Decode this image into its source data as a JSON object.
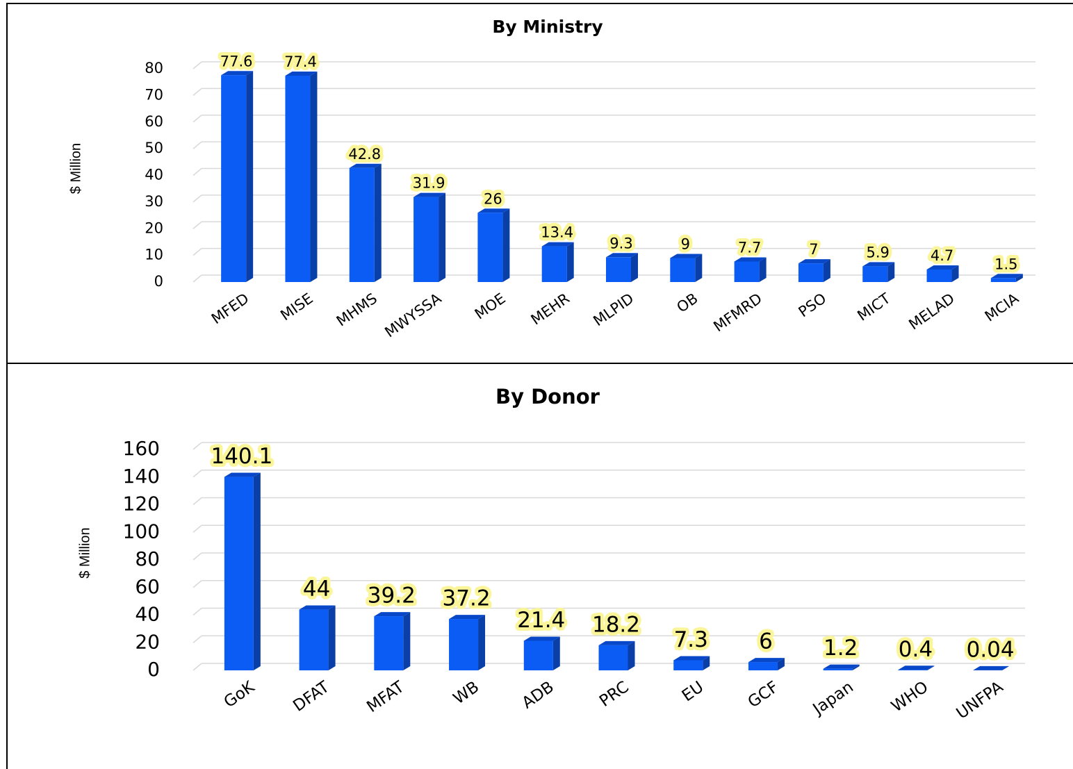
{
  "chart_data": [
    {
      "type": "bar",
      "title": "By Ministry",
      "y_label": "$ Million",
      "categories": [
        "MFED",
        "MISE",
        "MHMS",
        "MWYSSA",
        "MOE",
        "MEHR",
        "MLPID",
        "OB",
        "MFMRD",
        "PSO",
        "MICT",
        "MELAD",
        "MCIA"
      ],
      "values": [
        77.6,
        77.4,
        42.8,
        31.9,
        26,
        13.4,
        9.3,
        9,
        7.7,
        7,
        5.9,
        4.7,
        1.5
      ],
      "color": "#0a5cf5",
      "ylim": [
        0,
        80
      ],
      "yticks": [
        0,
        10,
        20,
        30,
        40,
        50,
        60,
        70,
        80
      ],
      "grid": true
    },
    {
      "type": "bar",
      "title": "By Donor",
      "y_label": "$ Million",
      "categories": [
        "GoK",
        "DFAT",
        "MFAT",
        "WB",
        "ADB",
        "PRC",
        "EU",
        "GCF",
        "Japan",
        "WHO",
        "UNFPA"
      ],
      "values": [
        140.1,
        44,
        39.2,
        37.2,
        21.4,
        18.2,
        7.3,
        6,
        1.2,
        0.4,
        0.04
      ],
      "color": "#0a5cf5",
      "ylim": [
        0,
        160
      ],
      "yticks": [
        0,
        20,
        40,
        60,
        80,
        100,
        120,
        140,
        160
      ],
      "grid": true
    }
  ]
}
